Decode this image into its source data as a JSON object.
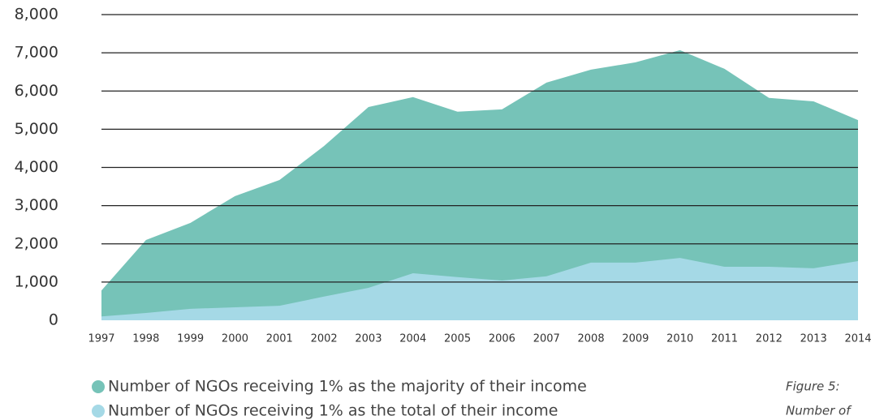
{
  "chart_data": {
    "type": "area",
    "x": [
      1997,
      1998,
      1999,
      2000,
      2001,
      2002,
      2003,
      2004,
      2005,
      2006,
      2007,
      2008,
      2009,
      2010,
      2011,
      2012,
      2013,
      2014
    ],
    "xlim": [
      1997,
      2014
    ],
    "series": [
      {
        "name": "Number of NGOs receiving 1% as the majority of their income",
        "color": "#76c3b8",
        "values": [
          780,
          2100,
          2550,
          3250,
          3670,
          4560,
          5580,
          5840,
          5460,
          5520,
          6220,
          6560,
          6750,
          7070,
          6580,
          5820,
          5730,
          5240
        ]
      },
      {
        "name": "Number of NGOs receiving 1% as the total of their income",
        "color": "#a5d9e6",
        "values": [
          100,
          190,
          300,
          340,
          380,
          620,
          850,
          1230,
          1130,
          1040,
          1150,
          1510,
          1510,
          1630,
          1400,
          1400,
          1360,
          1550
        ]
      }
    ],
    "ylim": [
      0,
      8000
    ],
    "yticks": [
      0,
      {
        "value": 1000,
        "label": "1,000"
      },
      {
        "value": 2000,
        "label": "2,000"
      },
      {
        "value": 3000,
        "label": "3,000"
      },
      {
        "value": 4000,
        "label": "4,000"
      },
      {
        "value": 5000,
        "label": "5,000"
      },
      {
        "value": 6000,
        "label": "6,000"
      },
      {
        "value": 7000,
        "label": "7,000"
      },
      {
        "value": 8000,
        "label": "8,000"
      }
    ],
    "grid": true,
    "caption_title": "Figure 5:",
    "caption_text": "Number of"
  }
}
